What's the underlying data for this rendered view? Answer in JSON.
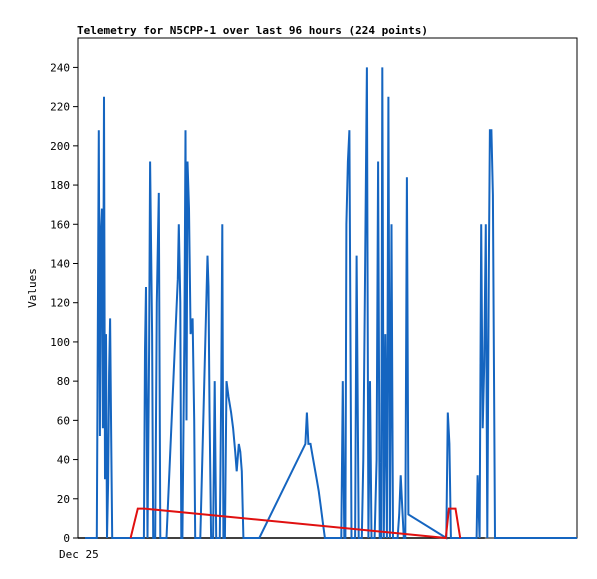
{
  "chart_data": {
    "type": "line",
    "title": "Telemetry for N5CPP-1 over last 96 hours (224 points)",
    "ylabel": "Values",
    "xlabel": "",
    "x_tick_labels": [
      "Dec 25"
    ],
    "ylim": [
      0,
      255
    ],
    "y_ticks": [
      0,
      20,
      40,
      60,
      80,
      100,
      120,
      140,
      160,
      180,
      200,
      220,
      240
    ],
    "x_range": [
      0,
      96
    ],
    "grid": false,
    "legend": "none",
    "series": [
      {
        "color": "#1565c0",
        "x": [
          0.0,
          2.3,
          2.5,
          2.7,
          2.9,
          3.1,
          3.3,
          3.5,
          3.7,
          3.9,
          4.1,
          4.3,
          4.5,
          4.7,
          4.9,
          5.1,
          5.3,
          5.5,
          5.7,
          5.9,
          11.5,
          11.7,
          11.9,
          12.2,
          12.5,
          12.7,
          13.1,
          13.3,
          13.5,
          13.7,
          14.0,
          14.4,
          14.7,
          15.0,
          15.2,
          15.5,
          15.9,
          18.1,
          18.3,
          18.6,
          18.8,
          19.0,
          19.4,
          19.6,
          19.8,
          20.0,
          20.3,
          20.6,
          21.0,
          21.3,
          21.5,
          21.7,
          22.0,
          22.2,
          22.5,
          23.9,
          24.1,
          24.3,
          24.6,
          25.0,
          25.3,
          25.6,
          25.8,
          26.0,
          26.3,
          26.6,
          26.8,
          27.0,
          27.3,
          27.6,
          28.0,
          28.5,
          28.9,
          29.3,
          29.6,
          30.0,
          30.3,
          30.6,
          30.9,
          31.3,
          31.6,
          32.0,
          32.4,
          32.8,
          33.0,
          33.4,
          33.7,
          34.0,
          43.0,
          43.3,
          43.6,
          44.0,
          44.4,
          44.8,
          45.2,
          45.6,
          46.0,
          46.4,
          46.8,
          47.1,
          50.0,
          50.3,
          50.6,
          50.8,
          51.0,
          51.3,
          51.6,
          52.0,
          52.4,
          52.7,
          53.0,
          53.4,
          53.7,
          54.0,
          54.3,
          54.6,
          55.0,
          55.3,
          55.6,
          55.9,
          56.2,
          56.5,
          56.9,
          57.2,
          57.5,
          57.8,
          58.0,
          58.3,
          58.6,
          58.9,
          59.2,
          59.5,
          59.8,
          60.1,
          60.4,
          60.7,
          61.0,
          61.3,
          61.6,
          61.9,
          62.2,
          62.5,
          62.8,
          63.1,
          70.5,
          70.8,
          71.1,
          71.4,
          71.7,
          72.0,
          72.3,
          76.2,
          76.4,
          76.6,
          76.8,
          77.0,
          77.3,
          77.6,
          77.9,
          78.2,
          78.5,
          78.8,
          79.0,
          79.3,
          79.6,
          80.0,
          96.0
        ],
        "y": [
          0,
          0,
          104,
          208,
          52,
          156,
          168,
          56,
          225,
          30,
          104,
          0,
          28,
          84,
          112,
          56,
          0,
          0,
          0,
          0,
          0,
          96,
          128,
          0,
          96,
          192,
          104,
          0,
          0,
          0,
          120,
          176,
          0,
          0,
          0,
          0,
          0,
          132,
          160,
          120,
          0,
          0,
          104,
          208,
          60,
          192,
          168,
          104,
          112,
          60,
          0,
          0,
          0,
          0,
          0,
          144,
          128,
          66,
          0,
          0,
          80,
          0,
          0,
          0,
          0,
          80,
          160,
          0,
          0,
          80,
          72,
          64,
          56,
          44,
          34,
          48,
          44,
          34,
          0,
          0,
          0,
          0,
          0,
          0,
          0,
          0,
          0,
          0,
          48,
          64,
          48,
          48,
          42,
          36,
          30,
          24,
          16,
          8,
          0,
          0,
          0,
          80,
          0,
          0,
          160,
          192,
          208,
          0,
          0,
          0,
          144,
          0,
          0,
          0,
          40,
          120,
          240,
          0,
          80,
          0,
          0,
          0,
          40,
          192,
          0,
          0,
          240,
          0,
          104,
          0,
          225,
          0,
          160,
          0,
          0,
          0,
          0,
          12,
          32,
          16,
          0,
          0,
          184,
          12,
          0,
          64,
          48,
          0,
          0,
          0,
          0,
          0,
          0,
          32,
          16,
          0,
          160,
          56,
          88,
          160,
          0,
          136,
          208,
          208,
          175,
          0,
          0
        ],
        "step": false
      },
      {
        "color": "#e01010",
        "x": [
          8.9,
          9.6,
          10.3,
          11.0,
          11.6,
          70.4,
          71.0,
          71.6,
          72.3,
          73.2
        ],
        "y": [
          0,
          7.5,
          15,
          15,
          15,
          0,
          15,
          15,
          15,
          0
        ]
      }
    ]
  }
}
